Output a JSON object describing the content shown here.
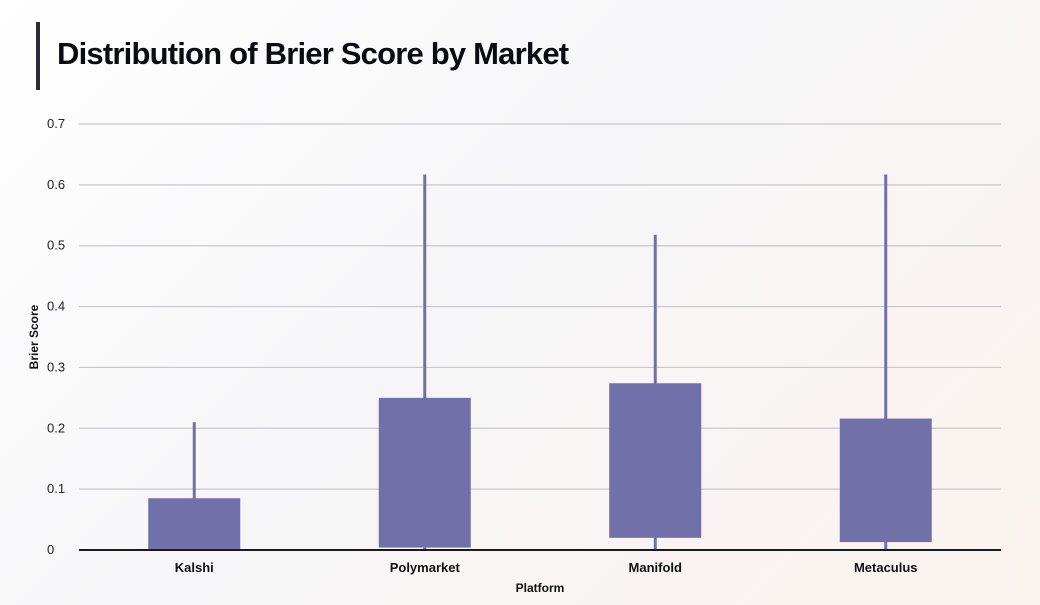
{
  "chart_data": {
    "type": "box",
    "title": "Distribution of Brier Score by Market",
    "xlabel": "Platform",
    "ylabel": "Brier Score",
    "ylim": [
      0,
      0.7
    ],
    "yticks": [
      "0",
      "0.1",
      "0.2",
      "0.3",
      "0.4",
      "0.5",
      "0.6",
      "0.7"
    ],
    "grid": true,
    "categories": [
      "Kalshi",
      "Polymarket",
      "Manifold",
      "Metaculus"
    ],
    "boxes": [
      {
        "category": "Kalshi",
        "min": 0.0,
        "q1": 0.0,
        "q3": 0.085,
        "max": 0.21
      },
      {
        "category": "Polymarket",
        "min": 0.0,
        "q1": 0.004,
        "q3": 0.25,
        "max": 0.617
      },
      {
        "category": "Manifold",
        "min": 0.0,
        "q1": 0.02,
        "q3": 0.274,
        "max": 0.518
      },
      {
        "category": "Metaculus",
        "min": 0.0,
        "q1": 0.013,
        "q3": 0.216,
        "max": 0.617
      }
    ],
    "colors": {
      "box": "#7270a8",
      "grid": "#c8c8cc",
      "axis": "#1a1a1a"
    }
  }
}
